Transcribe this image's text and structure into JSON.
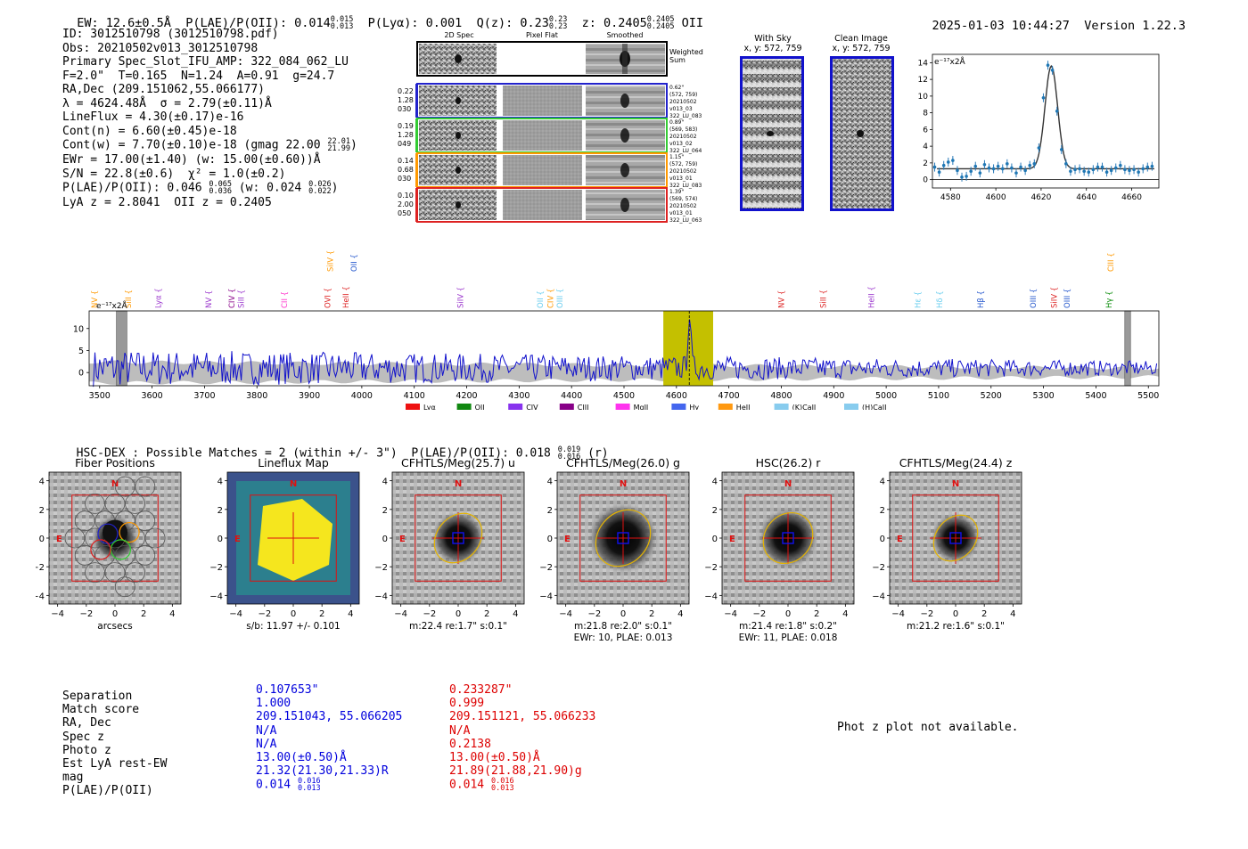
{
  "header": {
    "ew": "EW: 12.6±0.5Å",
    "plae": "P(LAE)/P(OII): 0.014",
    "plae_hi": "0.015",
    "plae_lo": "0.013",
    "plya": "P(Lyα): 0.001",
    "qz": "Q(z): 0.23",
    "qz_hi": "0.23",
    "qz_lo": "0.23",
    "z": "z: 0.2405",
    "z_hi": "0.2405",
    "z_lo": "0.2405",
    "z_line": "OII",
    "timestamp": "2025-01-03 10:44:27",
    "version": "Version 1.22.3"
  },
  "info": {
    "id": "ID: 3012510798 (3012510798.pdf)",
    "obs": "Obs: 20210502v013_3012510798",
    "primary": "Primary Spec_Slot_IFU_AMP: 322_084_062_LU",
    "params": "F=2.0\"  T=0.165  N=1.24  A=0.91  g=24.7",
    "radec": "RA,Dec (209.151062,55.066177)",
    "lambda": "λ = 4624.48Å  σ = 2.79(±0.11)Å",
    "lineflux": "LineFlux = 4.30(±0.17)e-16",
    "contn": "Cont(n) = 6.60(±0.45)e-18",
    "contw": "Cont(w) = 7.70(±0.10)e-18 (gmag 22.00",
    "contw_hi": "22.01",
    "contw_lo": "21.99",
    "ewr": "EWr = 17.00(±1.40) (w: 15.00(±0.60))Å",
    "sn": "S/N = 22.8(±0.6)  χ² = 1.0(±0.2)",
    "plae": "P(LAE)/P(OII): 0.046",
    "plae_hi": "0.065",
    "plae_lo": "0.036",
    "plae_w": "(w: 0.024",
    "plae_w_hi": "0.026",
    "plae_w_lo": "0.022",
    "lyaz": "LyA z = 2.8041  OII z = 0.2405"
  },
  "cutouts": {
    "col_2d": "2D Spec",
    "col_flat": "Pixel Flat",
    "col_smooth": "Smoothed",
    "weighted": "Weighted\nSum",
    "rows": [
      {
        "l1": "0.22",
        "l2": "1.28",
        "l3": "030",
        "r1": "0.62\"",
        "r2": "(572, 759)",
        "r3": "20210502",
        "r4": "v013_03",
        "r5": "322_LU_083",
        "color": "#2222cc"
      },
      {
        "l1": "0.19",
        "l2": "1.28",
        "l3": "049",
        "r1": "0.89\"",
        "r2": "(569, 583)",
        "r3": "20210502",
        "r4": "v013_02",
        "r5": "322_LU_064",
        "color": "#33cc33"
      },
      {
        "l1": "0.14",
        "l2": "0.68",
        "l3": "030",
        "r1": "1.15\"",
        "r2": "(572, 759)",
        "r3": "20210502",
        "r4": "v013_01",
        "r5": "322_LU_083",
        "color": "#ff9900"
      },
      {
        "l1": "0.10",
        "l2": "2.00",
        "l3": "050",
        "r1": "1.39\"",
        "r2": "(569, 574)",
        "r3": "20210502",
        "r4": "v013_01",
        "r5": "322_LU_063",
        "color": "#dd2222"
      }
    ],
    "withsky": "With Sky",
    "withsky_xy": "x, y: 572, 759",
    "clean": "Clean Image",
    "clean_xy": "x, y: 572, 759"
  },
  "chart_data": [
    {
      "type": "scatter",
      "title": "",
      "ylabel": "e⁻¹⁷x2Å",
      "xlim": [
        4572,
        4672
      ],
      "ylim": [
        -1,
        15
      ],
      "xticks": [
        "4580",
        "4600",
        "4620",
        "4640",
        "4660"
      ],
      "yticks": [
        "0",
        "2",
        "4",
        "6",
        "8",
        "10",
        "12",
        "14"
      ],
      "fit": {
        "center": 4624.5,
        "sigma": 2.79,
        "amp": 12.3,
        "cont": 1.3
      },
      "x": [
        4573,
        4575,
        4577,
        4579,
        4581,
        4583,
        4585,
        4587,
        4589,
        4591,
        4593,
        4595,
        4597,
        4599,
        4601,
        4603,
        4605,
        4607,
        4609,
        4611,
        4613,
        4615,
        4617,
        4619,
        4621,
        4623,
        4625,
        4627,
        4629,
        4631,
        4633,
        4635,
        4637,
        4639,
        4641,
        4643,
        4645,
        4647,
        4649,
        4651,
        4653,
        4655,
        4657,
        4659,
        4661,
        4663,
        4665,
        4667,
        4669
      ],
      "y": [
        1.5,
        0.9,
        1.7,
        2.1,
        2.3,
        1.1,
        0.3,
        0.4,
        1.0,
        1.6,
        0.8,
        1.8,
        1.4,
        1.3,
        1.6,
        1.3,
        1.9,
        1.4,
        0.8,
        1.5,
        1.1,
        1.7,
        1.9,
        3.8,
        9.8,
        13.7,
        13.1,
        8.2,
        3.6,
        1.9,
        1.0,
        1.2,
        1.3,
        1.0,
        0.9,
        1.2,
        1.5,
        1.5,
        0.9,
        1.1,
        1.4,
        1.7,
        1.2,
        1.1,
        1.2,
        0.9,
        1.3,
        1.5,
        1.6
      ]
    },
    {
      "type": "line",
      "ylabel": "e⁻¹⁷x2Å",
      "xlim": [
        3480,
        5520
      ],
      "ylim": [
        -3,
        14
      ],
      "xticks": [
        "3500",
        "3600",
        "3700",
        "3800",
        "3900",
        "4000",
        "4100",
        "4200",
        "4300",
        "4400",
        "4500",
        "4600",
        "4700",
        "4800",
        "4900",
        "5000",
        "5100",
        "5200",
        "5300",
        "5400",
        "5500"
      ],
      "yticks": [
        "0",
        "5",
        "10"
      ],
      "highlight": [
        4575,
        4670
      ],
      "emission_peak": 4624.5,
      "lines_top": [
        {
          "name": "NV",
          "x": 3490,
          "color": "#ff9900"
        },
        {
          "name": "SiII",
          "x": 3555,
          "color": "#ff9900"
        },
        {
          "name": "Lyα",
          "x": 3612,
          "color": "#9933cc"
        },
        {
          "name": "NV",
          "x": 3708,
          "color": "#9933cc"
        },
        {
          "name": "CIV",
          "x": 3752,
          "color": "#880088"
        },
        {
          "name": "SiII",
          "x": 3770,
          "color": "#9933cc"
        },
        {
          "name": "CII",
          "x": 3852,
          "color": "#ff33cc"
        },
        {
          "name": "OVI",
          "x": 3935,
          "color": "#dd2222"
        },
        {
          "name": "HeII",
          "x": 3970,
          "color": "#dd2222"
        },
        {
          "name": "SiIV",
          "x": 4188,
          "color": "#9933cc"
        },
        {
          "name": "OII",
          "x": 4340,
          "color": "#66ccee"
        },
        {
          "name": "CIV",
          "x": 4360,
          "color": "#ff9900"
        },
        {
          "name": "OIII",
          "x": 4378,
          "color": "#66ccee"
        },
        {
          "name": "NV",
          "x": 4800,
          "color": "#dd2222"
        },
        {
          "name": "SiII",
          "x": 4880,
          "color": "#dd2222"
        },
        {
          "name": "HeII",
          "x": 4972,
          "color": "#9933cc"
        },
        {
          "name": "Hε",
          "x": 5060,
          "color": "#66ccee"
        },
        {
          "name": "Hδ",
          "x": 5102,
          "color": "#66ccee"
        },
        {
          "name": "Hβ",
          "x": 5180,
          "color": "#2255cc"
        },
        {
          "name": "OIII",
          "x": 5280,
          "color": "#2255cc"
        },
        {
          "name": "SiIV",
          "x": 5320,
          "color": "#dd2222"
        },
        {
          "name": "OIII",
          "x": 5345,
          "color": "#2255cc"
        },
        {
          "name": "Hγ",
          "x": 5425,
          "color": "#008800"
        }
      ],
      "lines_high": [
        {
          "name": "SiIV",
          "x": 3940,
          "color": "#ff9900"
        },
        {
          "name": "OII",
          "x": 3985,
          "color": "#2255cc"
        },
        {
          "name": "CIII",
          "x": 5428,
          "color": "#ff9900"
        }
      ],
      "legend": [
        {
          "name": "Lyα",
          "color": "#ee1111"
        },
        {
          "name": "OII",
          "color": "#118811"
        },
        {
          "name": "CIV",
          "color": "#8833ee"
        },
        {
          "name": "CIII",
          "color": "#880088"
        },
        {
          "name": "MgII",
          "color": "#ff33ee"
        },
        {
          "name": "Hγ",
          "color": "#4466ee"
        },
        {
          "name": "HeII",
          "color": "#ff9911"
        },
        {
          "name": "(K)CaII",
          "color": "#88ccee"
        },
        {
          "name": "(H)CaII",
          "color": "#88ccee"
        }
      ]
    }
  ],
  "hsc": {
    "line": "HSC-DEX : Possible Matches = 2 (within +/- 3\")  P(LAE)/P(OII): 0.018",
    "hi": "0.019",
    "lo": "0.016",
    "band": "(r)"
  },
  "panels": [
    {
      "title": "Fiber Positions",
      "xlabel": "arcsecs",
      "xlabel2": ""
    },
    {
      "title": "Lineflux Map",
      "xlabel": "s/b: 11.97 +/- 0.101",
      "xlabel2": ""
    },
    {
      "title": "CFHTLS/Meg(25.7) u",
      "xlabel": "m:22.4  re:1.7\"  s:0.1\"",
      "xlabel2": ""
    },
    {
      "title": "CFHTLS/Meg(26.0) g",
      "xlabel": "m:21.8  re:2.0\"  s:0.1\"",
      "xlabel2": "EWr: 10, PLAE: 0.013"
    },
    {
      "title": "HSC(26.2) r",
      "xlabel": "m:21.4  re:1.8\"  s:0.2\"",
      "xlabel2": "EWr: 11, PLAE: 0.018"
    },
    {
      "title": "CFHTLS/Meg(24.4) z",
      "xlabel": "m:21.2  re:1.6\"  s:0.1\"",
      "xlabel2": ""
    }
  ],
  "panel_ticks": {
    "x": [
      "−4",
      "−2",
      "0",
      "2",
      "4"
    ],
    "y": [
      "4",
      "2",
      "0",
      "−2",
      "−4"
    ],
    "north": "N",
    "east": "E"
  },
  "table": {
    "labels": [
      "Separation",
      "Match score",
      "RA, Dec",
      "Spec z",
      "Photo z",
      "Est LyA rest-EW",
      "mag",
      "P(LAE)/P(OII)"
    ],
    "m1": [
      "0.107653\"",
      "1.000",
      "209.151043, 55.066205",
      "N/A",
      "N/A",
      "13.00(±0.50)Å",
      "21.32(21.30,21.33)R",
      "0.014"
    ],
    "m1_hi": "0.016",
    "m1_lo": "0.013",
    "m2": [
      "0.233287\"",
      "0.999",
      "209.151121, 55.066233",
      "N/A",
      "0.2138",
      "13.00(±0.50)Å",
      "21.89(21.88,21.90)g",
      "0.014"
    ],
    "m2_hi": "0.016",
    "m2_lo": "0.013",
    "colors": {
      "m1": "#0000dd",
      "m2": "#dd0000"
    }
  },
  "photz": "Phot z plot not available."
}
